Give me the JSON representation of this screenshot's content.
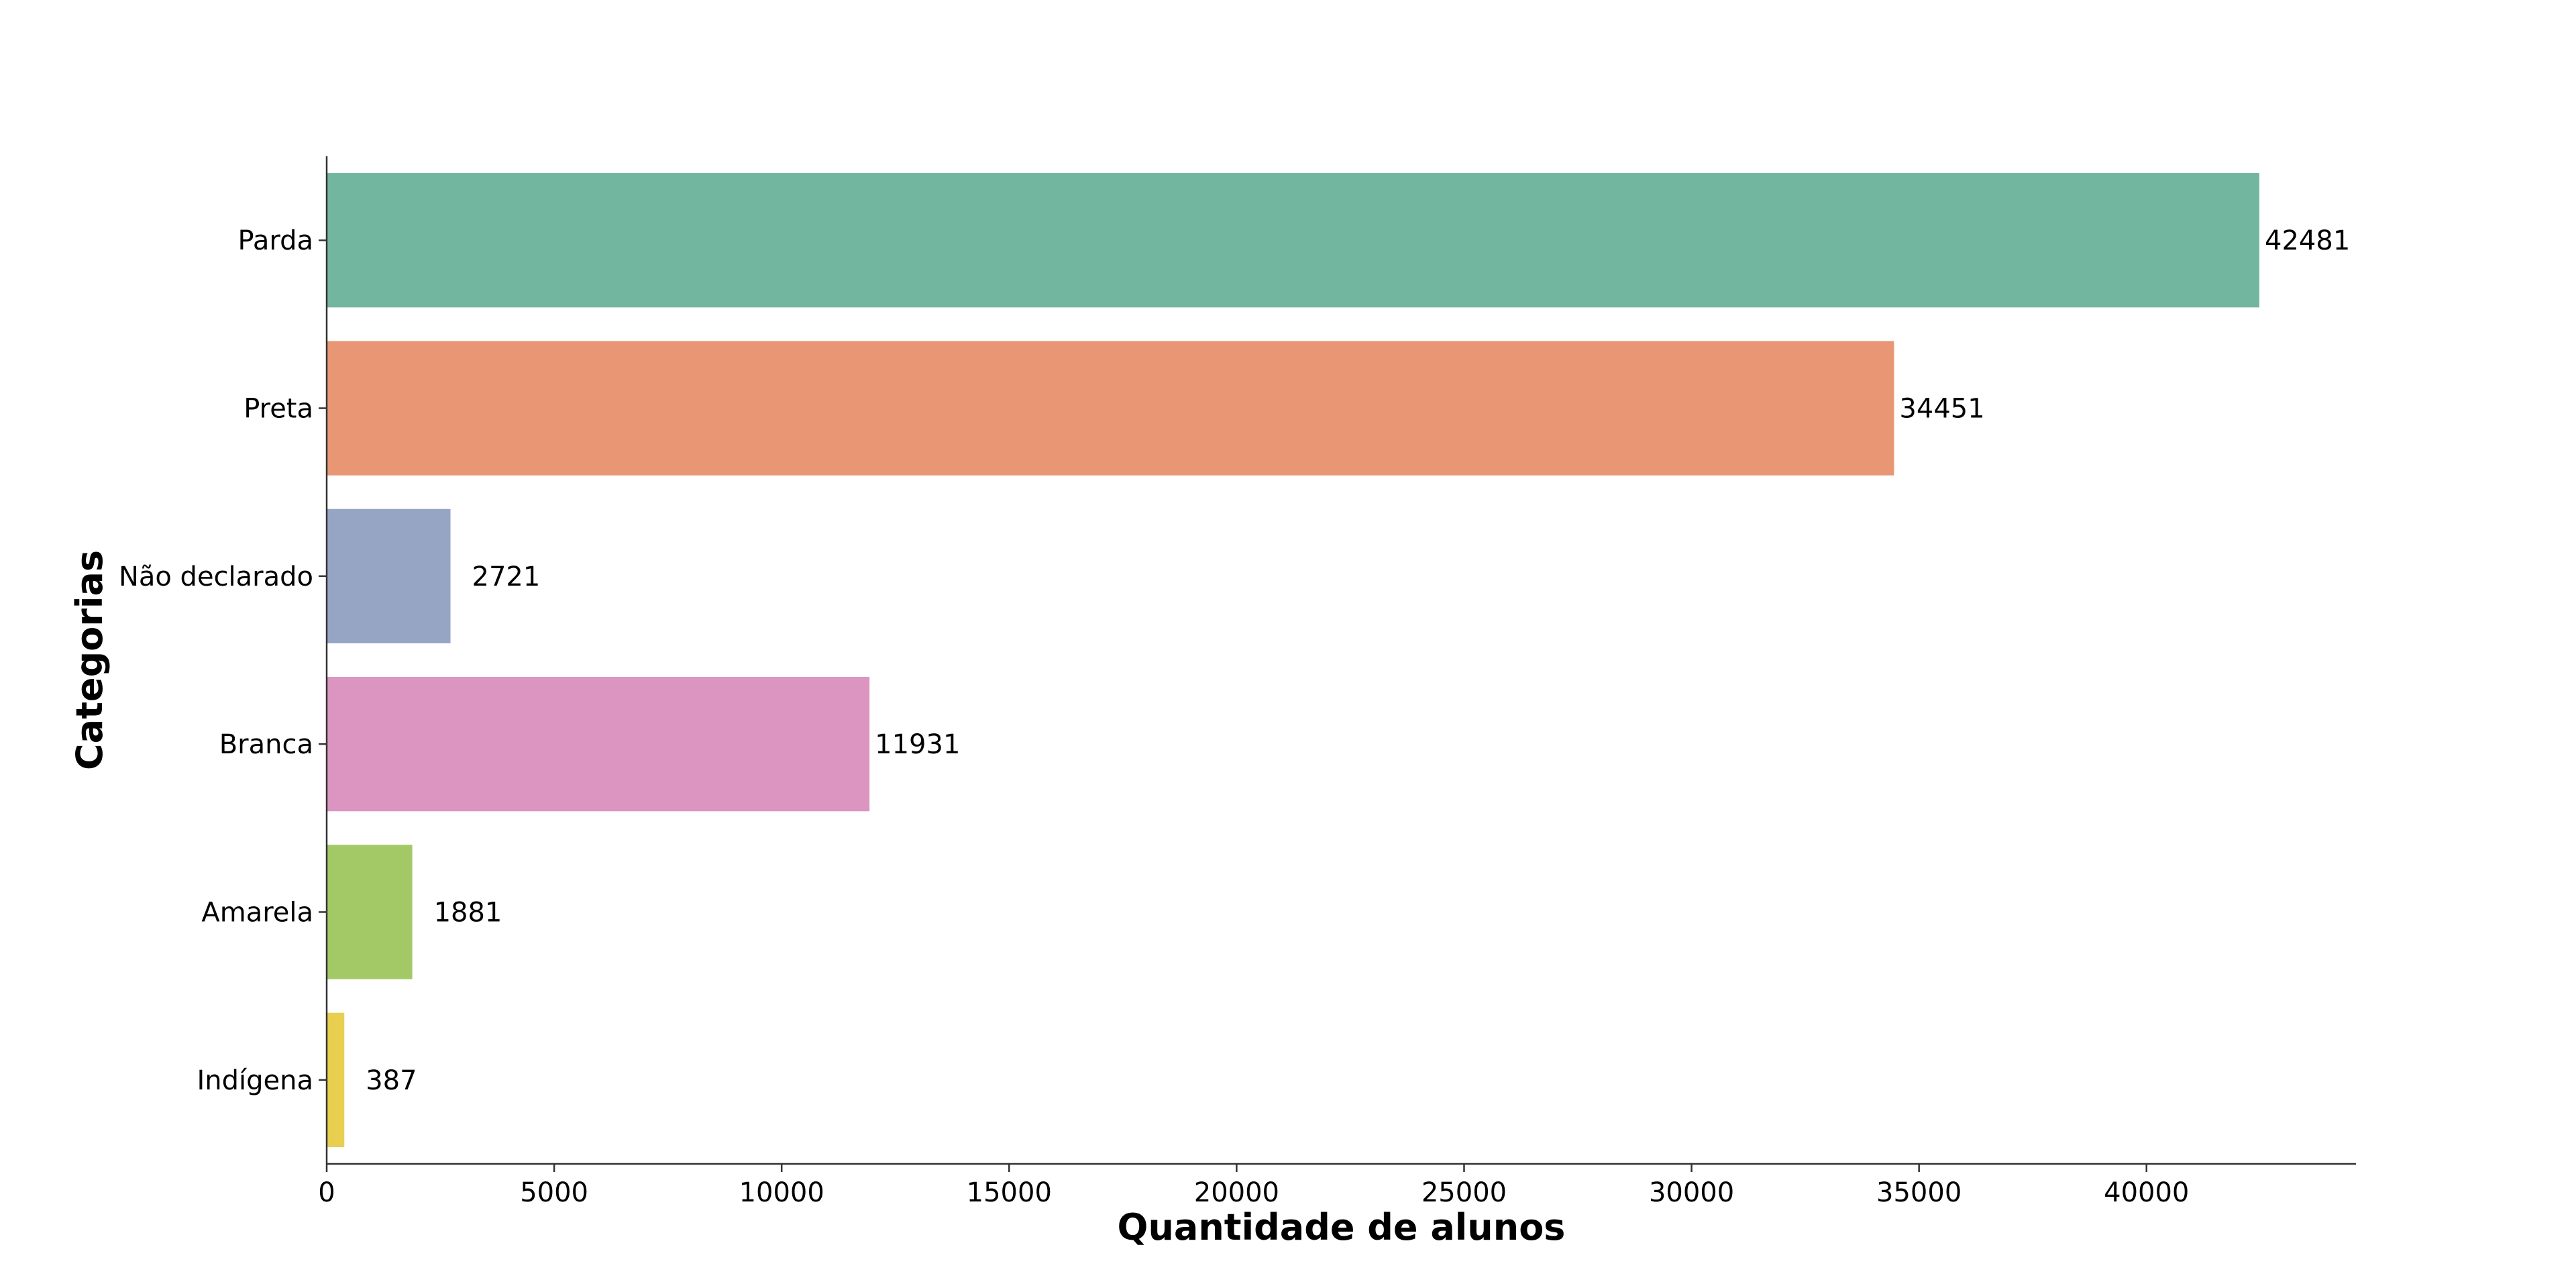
{
  "chart_data": {
    "type": "bar",
    "orientation": "horizontal",
    "title": "",
    "xlabel": "Quantidade de alunos",
    "ylabel": "Categorias",
    "categories": [
      "Parda",
      "Preta",
      "Não declarado",
      "Branca",
      "Amarela",
      "Indígena"
    ],
    "values": [
      42481,
      34451,
      2721,
      11931,
      1881,
      387
    ],
    "data_labels": [
      "42481",
      "34451",
      "2721",
      "11931",
      "1881",
      "387"
    ],
    "colors": [
      "#73b6a0",
      "#e99675",
      "#97a5c5",
      "#dc95c0",
      "#a3c966",
      "#e8cf4f"
    ],
    "xlim": [
      0,
      44604
    ],
    "xticks": [
      0,
      5000,
      10000,
      15000,
      20000,
      25000,
      30000,
      35000,
      40000
    ],
    "xtick_labels": [
      "0",
      "5000",
      "10000",
      "15000",
      "20000",
      "25000",
      "30000",
      "35000",
      "40000"
    ],
    "grid": false,
    "legend": "none",
    "spines": [
      "left",
      "bottom"
    ]
  }
}
